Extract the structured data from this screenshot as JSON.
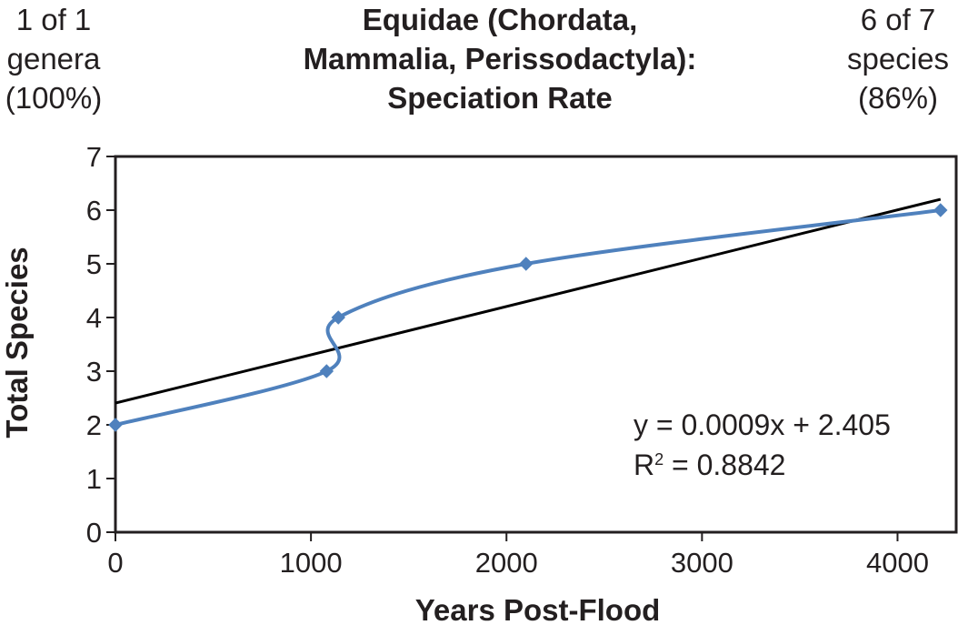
{
  "header": {
    "left_note": [
      "1 of 1",
      "genera",
      "(100%)"
    ],
    "right_note": [
      "6 of 7",
      "species",
      "(86%)"
    ],
    "title_lines": [
      "Equidae (Chordata,",
      "Mammalia, Perissodactyla):",
      "Speciation Rate"
    ]
  },
  "chart_data": {
    "type": "scatter",
    "title": "Equidae (Chordata, Mammalia, Perissodactyla): Speciation Rate",
    "xlabel": "Years Post-Flood",
    "ylabel": "Total Species",
    "xlim": [
      0,
      4300
    ],
    "ylim": [
      0,
      7
    ],
    "x_ticks": [
      0,
      1000,
      2000,
      3000,
      4000
    ],
    "y_ticks": [
      0,
      1,
      2,
      3,
      4,
      5,
      6,
      7
    ],
    "grid": false,
    "legend": "none",
    "series": [
      {
        "x": [
          0,
          1080,
          1140,
          2100,
          4220
        ],
        "y": [
          2,
          3,
          4,
          5,
          6
        ],
        "color": "#4f81bd",
        "marker": "diamond",
        "smoothed": true
      }
    ],
    "trendline": {
      "type": "linear",
      "slope": 0.0009,
      "intercept": 2.405,
      "x_range": [
        0,
        4220
      ],
      "color": "#000000",
      "equation_label": "y = 0.0009x + 2.405",
      "r2_label_prefix": "R",
      "r2_label_superscript": "2",
      "r2_label_value": " = 0.8842"
    }
  }
}
